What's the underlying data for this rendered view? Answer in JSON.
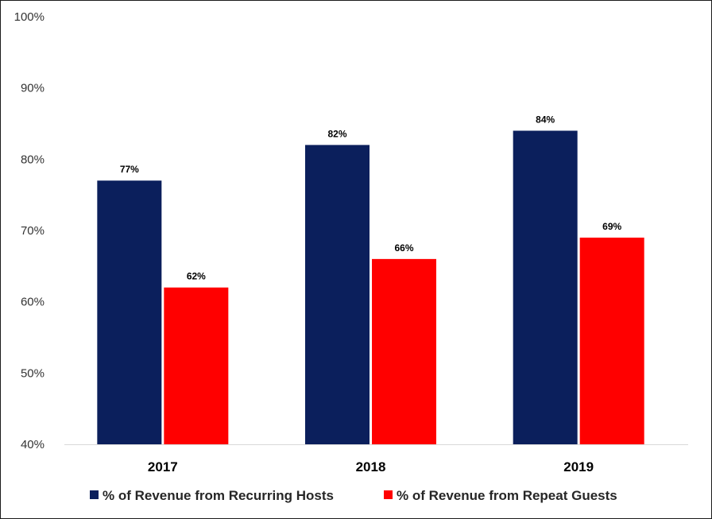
{
  "chart_data": {
    "type": "bar",
    "title": "",
    "xlabel": "",
    "ylabel": "",
    "categories": [
      "2017",
      "2018",
      "2019"
    ],
    "series": [
      {
        "name": "% of Revenue from Recurring Hosts",
        "values": [
          77,
          82,
          84
        ],
        "color": "#0b1f5c"
      },
      {
        "name": "% of Revenue from Repeat Guests",
        "values": [
          62,
          66,
          69
        ],
        "color": "#ff0000"
      }
    ],
    "ylim": [
      40,
      100
    ],
    "yticks": [
      40,
      50,
      60,
      70,
      80,
      90,
      100
    ],
    "ytick_labels": [
      "40%",
      "50%",
      "60%",
      "70%",
      "80%",
      "90%",
      "100%"
    ],
    "data_labels": [
      [
        "77%",
        "82%",
        "84%"
      ],
      [
        "62%",
        "66%",
        "69%"
      ]
    ],
    "grid": false,
    "legend": "bottom"
  }
}
